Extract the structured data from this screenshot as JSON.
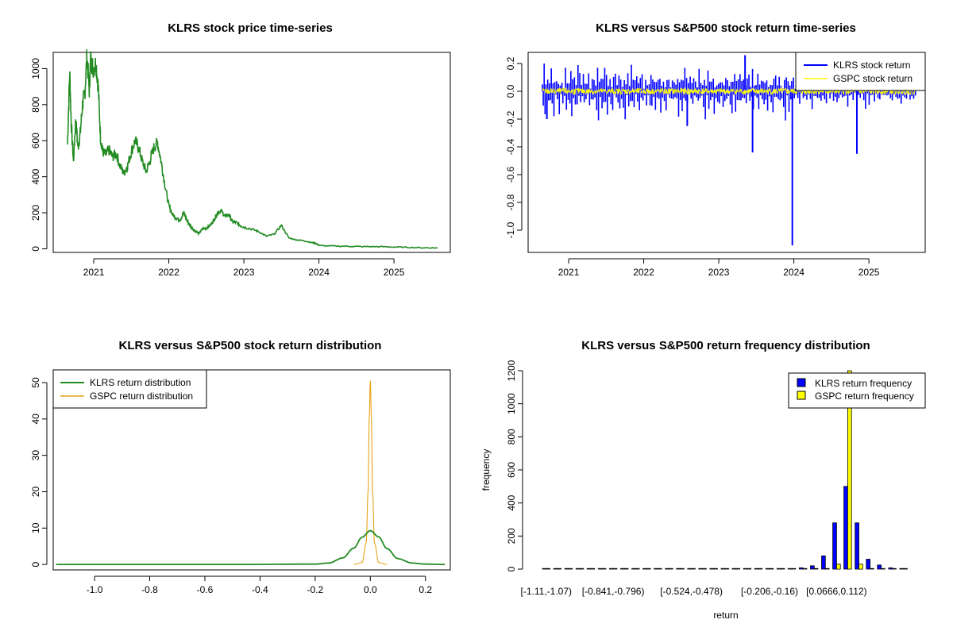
{
  "chart_data": [
    {
      "type": "line",
      "title": "KLRS stock price time-series",
      "xlabel": "",
      "ylabel": "",
      "xlim": [
        2020.46,
        2025.75
      ],
      "ylim": [
        -20,
        1090
      ],
      "x_ticks": [
        2021,
        2022,
        2023,
        2024,
        2025
      ],
      "x_tick_labels": [
        "2021",
        "2022",
        "2023",
        "2024",
        "2025"
      ],
      "y_ticks": [
        0,
        200,
        400,
        600,
        800,
        1000
      ],
      "colors": {
        "line": "#228B22"
      },
      "series": [
        {
          "x": [
            2020.65,
            2020.68,
            2020.7,
            2020.73,
            2020.76,
            2020.79,
            2020.82,
            2020.85,
            2020.88,
            2020.91,
            2020.94,
            2020.96,
            2020.99,
            2021.03,
            2021.06,
            2021.09,
            2021.12,
            2021.16,
            2021.2,
            2021.25,
            2021.3,
            2021.35,
            2021.4,
            2021.45,
            2021.5,
            2021.55,
            2021.6,
            2021.65,
            2021.7,
            2021.75,
            2021.8,
            2021.85,
            2021.9,
            2021.95,
            2022.0,
            2022.05,
            2022.1,
            2022.15,
            2022.2,
            2022.25,
            2022.3,
            2022.35,
            2022.4,
            2022.45,
            2022.5,
            2022.55,
            2022.6,
            2022.65,
            2022.7,
            2022.75,
            2022.8,
            2022.85,
            2022.9,
            2022.95,
            2023.0,
            2023.1,
            2023.2,
            2023.3,
            2023.4,
            2023.5,
            2023.6,
            2023.7,
            2023.8,
            2023.9,
            2023.96,
            2024.0,
            2024.2,
            2024.4,
            2024.6,
            2024.8,
            2025.0,
            2025.2,
            2025.4,
            2025.58
          ],
          "y": [
            580,
            980,
            700,
            480,
            720,
            560,
            640,
            800,
            860,
            1070,
            880,
            1060,
            1000,
            1030,
            900,
            620,
            540,
            520,
            550,
            510,
            530,
            460,
            420,
            460,
            540,
            600,
            560,
            480,
            430,
            490,
            560,
            590,
            480,
            350,
            240,
            190,
            170,
            160,
            200,
            150,
            120,
            100,
            85,
            110,
            115,
            130,
            160,
            200,
            210,
            180,
            190,
            150,
            145,
            130,
            120,
            110,
            95,
            70,
            80,
            130,
            60,
            50,
            45,
            35,
            30,
            18,
            15,
            14,
            12,
            12,
            10,
            8,
            6,
            5
          ]
        }
      ]
    },
    {
      "type": "line",
      "title": "KLRS versus S&P500 stock return time-series",
      "xlabel": "",
      "ylabel": "",
      "xlim": [
        2020.46,
        2025.75
      ],
      "ylim": [
        -1.16,
        0.28
      ],
      "x_ticks": [
        2021,
        2022,
        2023,
        2024,
        2025
      ],
      "x_tick_labels": [
        "2021",
        "2022",
        "2023",
        "2024",
        "2025"
      ],
      "y_ticks": [
        -1.0,
        -0.8,
        -0.6,
        -0.4,
        -0.2,
        0.0,
        0.2
      ],
      "y_tick_labels": [
        "-1.0",
        "-0.8",
        "-0.6",
        "-0.4",
        "-0.2",
        "0.0",
        "0.2"
      ],
      "legend_position": "top-right",
      "colors": {
        "klrs": "#0000FF",
        "gspc": "#FFFF00"
      },
      "series": [
        {
          "name": "KLRS stock return",
          "amplitude_typical": 0.08
        },
        {
          "name": "GSPC stock return",
          "amplitude_typical": 0.02
        }
      ],
      "spikes": [
        {
          "x": 2023.45,
          "y": -0.44
        },
        {
          "x": 2023.98,
          "y": -1.11
        },
        {
          "x": 2024.84,
          "y": -0.45
        },
        {
          "x": 2023.35,
          "y": 0.26
        },
        {
          "x": 2022.58,
          "y": -0.25
        },
        {
          "x": 2020.71,
          "y": -0.2
        }
      ],
      "klrs_samples": [
        0.05,
        -0.12,
        0.18,
        -0.2,
        0.1,
        -0.06,
        0.14,
        -0.15,
        0.08,
        -0.1,
        0.16,
        -0.08,
        0.12,
        -0.18,
        0.07,
        -0.05,
        0.11,
        -0.09,
        0.06,
        -0.14,
        0.09,
        -0.04,
        0.13,
        -0.11,
        0.04,
        -0.07,
        0.15,
        -0.12,
        0.08,
        -0.06
      ]
    },
    {
      "type": "line",
      "title": "KLRS versus S&P500 stock return distribution",
      "xlabel": "",
      "ylabel": "",
      "xlim": [
        -1.15,
        0.29
      ],
      "ylim": [
        -1.5,
        53.5
      ],
      "x_ticks": [
        -1.0,
        -0.8,
        -0.6,
        -0.4,
        -0.2,
        0.0,
        0.2
      ],
      "x_tick_labels": [
        "-1.0",
        "-0.8",
        "-0.6",
        "-0.4",
        "-0.2",
        "0.0",
        "0.2"
      ],
      "y_ticks": [
        0,
        10,
        20,
        30,
        40,
        50
      ],
      "legend_position": "top-left",
      "colors": {
        "klrs": "#228B22",
        "gspc": "#E8A317"
      },
      "series": [
        {
          "name": "KLRS return distribution",
          "x": [
            -1.14,
            -0.5,
            -0.2,
            -0.15,
            -0.1,
            -0.06,
            -0.03,
            0.0,
            0.03,
            0.06,
            0.1,
            0.15,
            0.2,
            0.27
          ],
          "y": [
            0,
            0,
            0.1,
            0.4,
            1.8,
            4.5,
            7.5,
            9.3,
            7.6,
            4.4,
            1.6,
            0.4,
            0.1,
            0
          ]
        },
        {
          "name": "GSPC return distribution",
          "x": [
            -0.06,
            -0.03,
            -0.015,
            -0.008,
            -0.004,
            0.0,
            0.004,
            0.008,
            0.015,
            0.03,
            0.06
          ],
          "y": [
            0,
            0.5,
            6,
            20,
            40,
            50.5,
            40,
            20,
            6,
            0.5,
            0
          ]
        }
      ]
    },
    {
      "type": "bar",
      "title": "KLRS versus S&P500 return frequency distribution",
      "xlabel": "return",
      "ylabel": "frequency",
      "ylim": [
        0,
        1200
      ],
      "y_ticks": [
        0,
        200,
        400,
        600,
        800,
        1000,
        1200
      ],
      "category_labels_shown": [
        "[-1.11,-1.07)",
        "[-0.841,-0.796)",
        "[-0.524,-0.478)",
        "[-0.206,-0.16)",
        "[0.0666,0.112)"
      ],
      "legend_position": "top-right",
      "colors": {
        "klrs": "#0000FF",
        "gspc": "#FFFF00"
      },
      "series": [
        {
          "name": "KLRS return frequency",
          "values": [
            1,
            0,
            0,
            0,
            0,
            0,
            0,
            0,
            0,
            0,
            0,
            0,
            0,
            0,
            0,
            1,
            0,
            0,
            0,
            0,
            0,
            0,
            3,
            8,
            20,
            80,
            280,
            500,
            280,
            60,
            25,
            8,
            3
          ]
        },
        {
          "name": "GSPC return frequency",
          "values": [
            0,
            0,
            0,
            0,
            0,
            0,
            0,
            0,
            0,
            0,
            0,
            0,
            0,
            0,
            0,
            0,
            0,
            0,
            0,
            0,
            0,
            0,
            0,
            0,
            0,
            0,
            30,
            1200,
            30,
            0,
            0,
            0,
            0
          ]
        }
      ]
    }
  ]
}
